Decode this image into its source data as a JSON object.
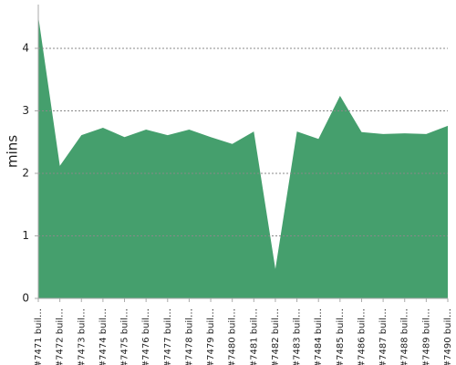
{
  "chart_data": {
    "type": "area",
    "y_label": "mins",
    "categories": [
      "#7471 buil…",
      "#7472 buil…",
      "#7473 buil…",
      "#7474 buil…",
      "#7475 buil…",
      "#7476 buil…",
      "#7477 buil…",
      "#7478 buil…",
      "#7479 buil…",
      "#7480 buil…",
      "#7481 buil…",
      "#7482 buil…",
      "#7483 buil…",
      "#7484 buil…",
      "#7485 buil…",
      "#7486 buil…",
      "#7487 buil…",
      "#7488 buil…",
      "#7489 buil…",
      "#7490 buil…"
    ],
    "values": [
      4.51,
      2.12,
      2.61,
      2.73,
      2.58,
      2.7,
      2.61,
      2.7,
      2.58,
      2.47,
      2.67,
      0.47,
      2.67,
      2.55,
      3.24,
      2.66,
      2.63,
      2.64,
      2.63,
      2.76
    ],
    "color": "#459f6d",
    "ylim": [
      0,
      4.7
    ],
    "yticks": [
      0,
      1,
      2,
      3,
      4
    ],
    "grid": true
  }
}
